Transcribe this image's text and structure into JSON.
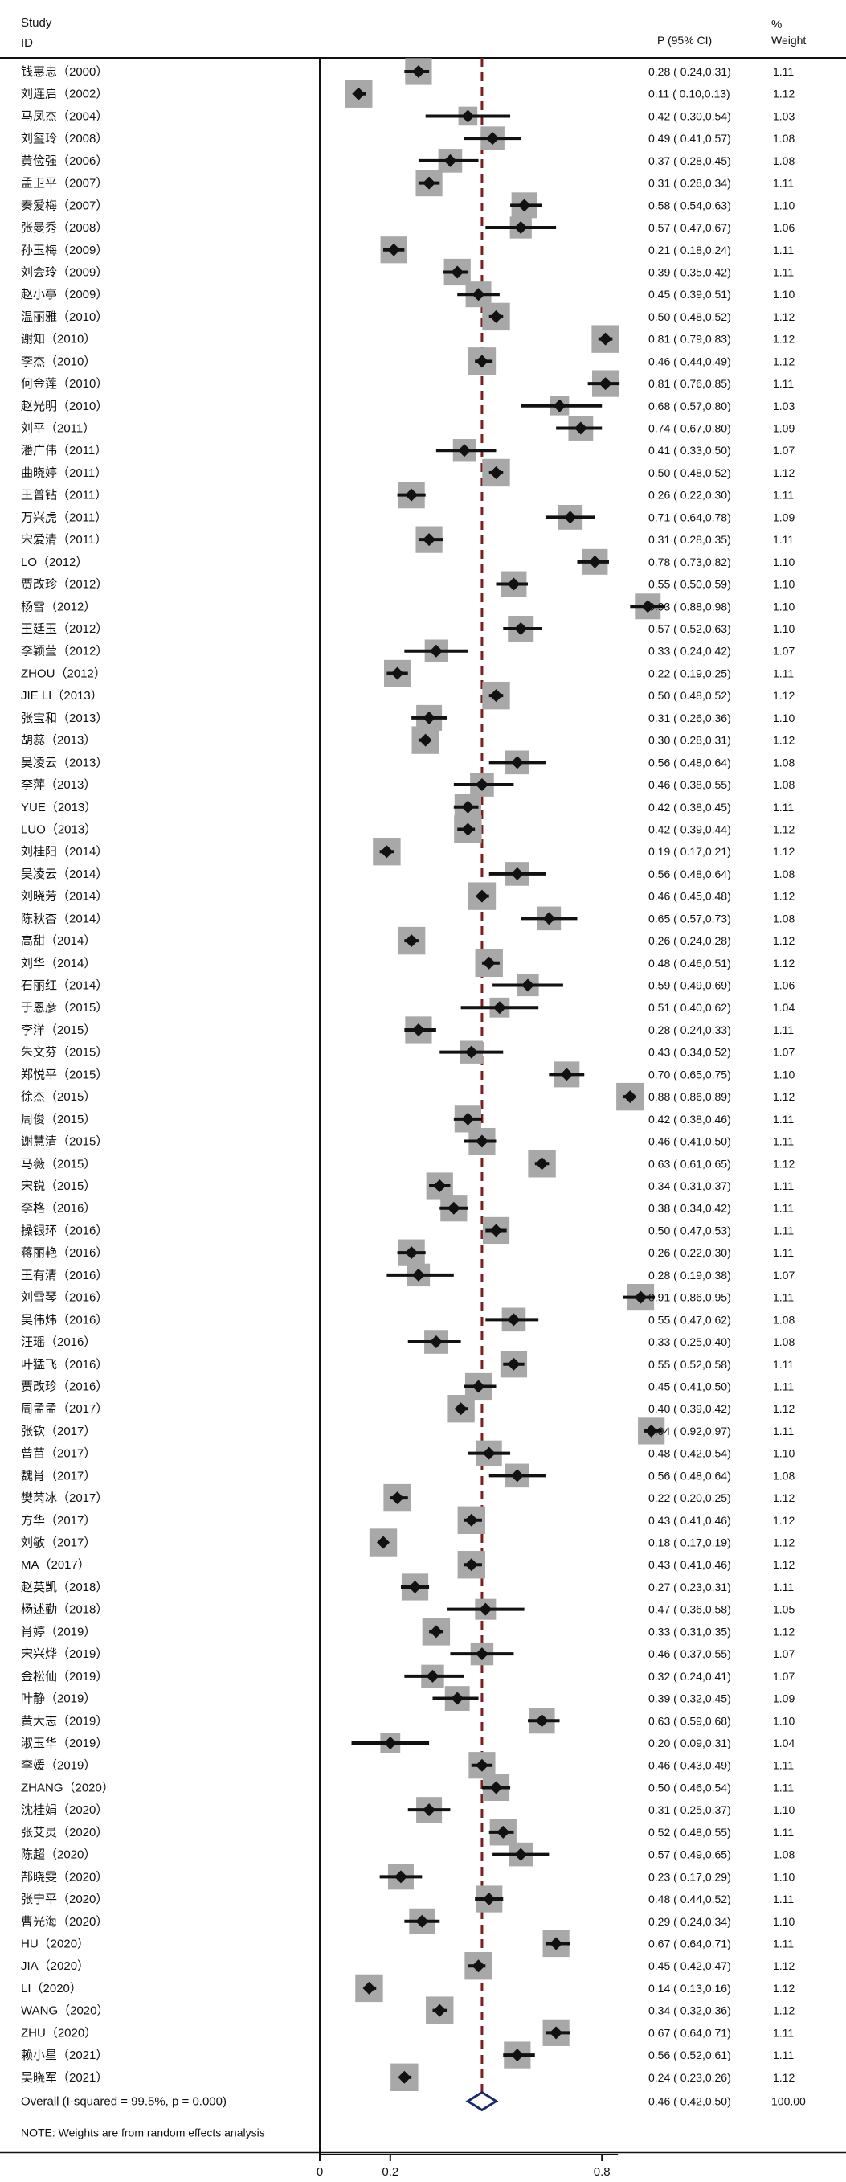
{
  "header": {
    "study": "Study",
    "id": "ID",
    "p_ci": "P (95% CI)",
    "pct": "%",
    "weight": "Weight"
  },
  "note": "NOTE: Weights are from random effects analysis",
  "colors": {
    "box": "#a8a8a8",
    "diamond": "#111111",
    "overall_diamond": "#1a2a6c",
    "ref_line": "#7a1f1f",
    "axis": "#111111"
  },
  "chart_data": {
    "type": "forest",
    "x_axis_ticks": [
      {
        "value": 0,
        "label": "0"
      },
      {
        "value": 0.2,
        "label": "0.2"
      },
      {
        "value": 0.8,
        "label": "0.8"
      }
    ],
    "xlim": [
      0,
      1
    ],
    "reference_line": 0.46,
    "overall": {
      "label": "Overall  (I-squared = 99.5%, p = 0.000)",
      "p": 0.46,
      "lo": 0.42,
      "hi": 0.5,
      "ci_text": "0.46 ( 0.42,0.50)",
      "weight": "100.00"
    },
    "studies": [
      {
        "name": "钱惠忠（2000）",
        "p": 0.28,
        "lo": 0.24,
        "hi": 0.31,
        "ci_text": "0.28 ( 0.24,0.31)",
        "weight": "1.11"
      },
      {
        "name": "刘连启（2002）",
        "p": 0.11,
        "lo": 0.1,
        "hi": 0.13,
        "ci_text": "0.11 ( 0.10,0.13)",
        "weight": "1.12"
      },
      {
        "name": "马凤杰（2004）",
        "p": 0.42,
        "lo": 0.3,
        "hi": 0.54,
        "ci_text": "0.42 ( 0.30,0.54)",
        "weight": "1.03"
      },
      {
        "name": "刘玺玲（2008）",
        "p": 0.49,
        "lo": 0.41,
        "hi": 0.57,
        "ci_text": "0.49 ( 0.41,0.57)",
        "weight": "1.08"
      },
      {
        "name": "黄俭强（2006）",
        "p": 0.37,
        "lo": 0.28,
        "hi": 0.45,
        "ci_text": "0.37 ( 0.28,0.45)",
        "weight": "1.08"
      },
      {
        "name": "孟卫平（2007）",
        "p": 0.31,
        "lo": 0.28,
        "hi": 0.34,
        "ci_text": "0.31 ( 0.28,0.34)",
        "weight": "1.11"
      },
      {
        "name": "秦爱梅（2007）",
        "p": 0.58,
        "lo": 0.54,
        "hi": 0.63,
        "ci_text": "0.58 ( 0.54,0.63)",
        "weight": "1.10"
      },
      {
        "name": "张曼秀（2008）",
        "p": 0.57,
        "lo": 0.47,
        "hi": 0.67,
        "ci_text": "0.57 ( 0.47,0.67)",
        "weight": "1.06"
      },
      {
        "name": "孙玉梅（2009）",
        "p": 0.21,
        "lo": 0.18,
        "hi": 0.24,
        "ci_text": "0.21 ( 0.18,0.24)",
        "weight": "1.11"
      },
      {
        "name": "刘会玲（2009）",
        "p": 0.39,
        "lo": 0.35,
        "hi": 0.42,
        "ci_text": "0.39 ( 0.35,0.42)",
        "weight": "1.11"
      },
      {
        "name": "赵小亭（2009）",
        "p": 0.45,
        "lo": 0.39,
        "hi": 0.51,
        "ci_text": "0.45 ( 0.39,0.51)",
        "weight": "1.10"
      },
      {
        "name": "温丽雅（2010）",
        "p": 0.5,
        "lo": 0.48,
        "hi": 0.52,
        "ci_text": "0.50 ( 0.48,0.52)",
        "weight": "1.12"
      },
      {
        "name": "谢知（2010）",
        "p": 0.81,
        "lo": 0.79,
        "hi": 0.83,
        "ci_text": "0.81 ( 0.79,0.83)",
        "weight": "1.12"
      },
      {
        "name": "李杰（2010）",
        "p": 0.46,
        "lo": 0.44,
        "hi": 0.49,
        "ci_text": "0.46 ( 0.44,0.49)",
        "weight": "1.12"
      },
      {
        "name": "何金莲（2010）",
        "p": 0.81,
        "lo": 0.76,
        "hi": 0.85,
        "ci_text": "0.81 ( 0.76,0.85)",
        "weight": "1.11"
      },
      {
        "name": "赵光明（2010）",
        "p": 0.68,
        "lo": 0.57,
        "hi": 0.8,
        "ci_text": "0.68 ( 0.57,0.80)",
        "weight": "1.03"
      },
      {
        "name": "刘平（2011）",
        "p": 0.74,
        "lo": 0.67,
        "hi": 0.8,
        "ci_text": "0.74 ( 0.67,0.80)",
        "weight": "1.09"
      },
      {
        "name": "潘广伟（2011）",
        "p": 0.41,
        "lo": 0.33,
        "hi": 0.5,
        "ci_text": "0.41 ( 0.33,0.50)",
        "weight": "1.07"
      },
      {
        "name": "曲晓婷（2011）",
        "p": 0.5,
        "lo": 0.48,
        "hi": 0.52,
        "ci_text": "0.50 ( 0.48,0.52)",
        "weight": "1.12"
      },
      {
        "name": "王普钻（2011）",
        "p": 0.26,
        "lo": 0.22,
        "hi": 0.3,
        "ci_text": "0.26 ( 0.22,0.30)",
        "weight": "1.11"
      },
      {
        "name": "万兴虎（2011）",
        "p": 0.71,
        "lo": 0.64,
        "hi": 0.78,
        "ci_text": "0.71 ( 0.64,0.78)",
        "weight": "1.09"
      },
      {
        "name": "宋爱清（2011）",
        "p": 0.31,
        "lo": 0.28,
        "hi": 0.35,
        "ci_text": "0.31 ( 0.28,0.35)",
        "weight": "1.11"
      },
      {
        "name": "LO（2012）",
        "p": 0.78,
        "lo": 0.73,
        "hi": 0.82,
        "ci_text": "0.78 ( 0.73,0.82)",
        "weight": "1.10"
      },
      {
        "name": "贾改珍（2012）",
        "p": 0.55,
        "lo": 0.5,
        "hi": 0.59,
        "ci_text": "0.55 ( 0.50,0.59)",
        "weight": "1.10"
      },
      {
        "name": "杨雪（2012）",
        "p": 0.93,
        "lo": 0.88,
        "hi": 0.98,
        "ci_text": "0.93 ( 0.88,0.98)",
        "weight": "1.10"
      },
      {
        "name": "王廷玉（2012）",
        "p": 0.57,
        "lo": 0.52,
        "hi": 0.63,
        "ci_text": "0.57 ( 0.52,0.63)",
        "weight": "1.10"
      },
      {
        "name": "李颖莹（2012）",
        "p": 0.33,
        "lo": 0.24,
        "hi": 0.42,
        "ci_text": "0.33 ( 0.24,0.42)",
        "weight": "1.07"
      },
      {
        "name": "ZHOU（2012）",
        "p": 0.22,
        "lo": 0.19,
        "hi": 0.25,
        "ci_text": "0.22 ( 0.19,0.25)",
        "weight": "1.11"
      },
      {
        "name": "JIE LI（2013）",
        "p": 0.5,
        "lo": 0.48,
        "hi": 0.52,
        "ci_text": "0.50 ( 0.48,0.52)",
        "weight": "1.12"
      },
      {
        "name": "张宝和（2013）",
        "p": 0.31,
        "lo": 0.26,
        "hi": 0.36,
        "ci_text": "0.31 ( 0.26,0.36)",
        "weight": "1.10"
      },
      {
        "name": "胡蕊（2013）",
        "p": 0.3,
        "lo": 0.28,
        "hi": 0.31,
        "ci_text": "0.30 ( 0.28,0.31)",
        "weight": "1.12"
      },
      {
        "name": "吴凌云（2013）",
        "p": 0.56,
        "lo": 0.48,
        "hi": 0.64,
        "ci_text": "0.56 ( 0.48,0.64)",
        "weight": "1.08"
      },
      {
        "name": "李萍（2013）",
        "p": 0.46,
        "lo": 0.38,
        "hi": 0.55,
        "ci_text": "0.46 ( 0.38,0.55)",
        "weight": "1.08"
      },
      {
        "name": "YUE（2013）",
        "p": 0.42,
        "lo": 0.38,
        "hi": 0.45,
        "ci_text": "0.42 ( 0.38,0.45)",
        "weight": "1.11"
      },
      {
        "name": "LUO（2013）",
        "p": 0.42,
        "lo": 0.39,
        "hi": 0.44,
        "ci_text": "0.42 ( 0.39,0.44)",
        "weight": "1.12"
      },
      {
        "name": "刘桂阳（2014）",
        "p": 0.19,
        "lo": 0.17,
        "hi": 0.21,
        "ci_text": "0.19 ( 0.17,0.21)",
        "weight": "1.12"
      },
      {
        "name": "吴凌云（2014）",
        "p": 0.56,
        "lo": 0.48,
        "hi": 0.64,
        "ci_text": "0.56 ( 0.48,0.64)",
        "weight": "1.08"
      },
      {
        "name": "刘晓芳（2014）",
        "p": 0.46,
        "lo": 0.45,
        "hi": 0.48,
        "ci_text": "0.46 ( 0.45,0.48)",
        "weight": "1.12"
      },
      {
        "name": "陈秋杏（2014）",
        "p": 0.65,
        "lo": 0.57,
        "hi": 0.73,
        "ci_text": "0.65 ( 0.57,0.73)",
        "weight": "1.08"
      },
      {
        "name": "高甜（2014）",
        "p": 0.26,
        "lo": 0.24,
        "hi": 0.28,
        "ci_text": "0.26 ( 0.24,0.28)",
        "weight": "1.12"
      },
      {
        "name": "刘华（2014）",
        "p": 0.48,
        "lo": 0.46,
        "hi": 0.51,
        "ci_text": "0.48 ( 0.46,0.51)",
        "weight": "1.12"
      },
      {
        "name": "石丽红（2014）",
        "p": 0.59,
        "lo": 0.49,
        "hi": 0.69,
        "ci_text": "0.59 ( 0.49,0.69)",
        "weight": "1.06"
      },
      {
        "name": "于恩彦（2015）",
        "p": 0.51,
        "lo": 0.4,
        "hi": 0.62,
        "ci_text": "0.51 ( 0.40,0.62)",
        "weight": "1.04"
      },
      {
        "name": "李洋（2015）",
        "p": 0.28,
        "lo": 0.24,
        "hi": 0.33,
        "ci_text": "0.28 ( 0.24,0.33)",
        "weight": "1.11"
      },
      {
        "name": "朱文芬（2015）",
        "p": 0.43,
        "lo": 0.34,
        "hi": 0.52,
        "ci_text": "0.43 ( 0.34,0.52)",
        "weight": "1.07"
      },
      {
        "name": "郑悦平（2015）",
        "p": 0.7,
        "lo": 0.65,
        "hi": 0.75,
        "ci_text": "0.70 ( 0.65,0.75)",
        "weight": "1.10"
      },
      {
        "name": "徐杰（2015）",
        "p": 0.88,
        "lo": 0.86,
        "hi": 0.89,
        "ci_text": "0.88 ( 0.86,0.89)",
        "weight": "1.12"
      },
      {
        "name": "周俊（2015）",
        "p": 0.42,
        "lo": 0.38,
        "hi": 0.46,
        "ci_text": "0.42 ( 0.38,0.46)",
        "weight": "1.11"
      },
      {
        "name": "谢慧清（2015）",
        "p": 0.46,
        "lo": 0.41,
        "hi": 0.5,
        "ci_text": "0.46 ( 0.41,0.50)",
        "weight": "1.11"
      },
      {
        "name": "马薇（2015）",
        "p": 0.63,
        "lo": 0.61,
        "hi": 0.65,
        "ci_text": "0.63 ( 0.61,0.65)",
        "weight": "1.12"
      },
      {
        "name": "宋锐（2015）",
        "p": 0.34,
        "lo": 0.31,
        "hi": 0.37,
        "ci_text": "0.34 ( 0.31,0.37)",
        "weight": "1.11"
      },
      {
        "name": "李格（2016）",
        "p": 0.38,
        "lo": 0.34,
        "hi": 0.42,
        "ci_text": "0.38 ( 0.34,0.42)",
        "weight": "1.11"
      },
      {
        "name": "操银环（2016）",
        "p": 0.5,
        "lo": 0.47,
        "hi": 0.53,
        "ci_text": "0.50 ( 0.47,0.53)",
        "weight": "1.11"
      },
      {
        "name": "蒋丽艳（2016）",
        "p": 0.26,
        "lo": 0.22,
        "hi": 0.3,
        "ci_text": "0.26 ( 0.22,0.30)",
        "weight": "1.11"
      },
      {
        "name": "王有清（2016）",
        "p": 0.28,
        "lo": 0.19,
        "hi": 0.38,
        "ci_text": "0.28 ( 0.19,0.38)",
        "weight": "1.07"
      },
      {
        "name": "刘雪琴（2016）",
        "p": 0.91,
        "lo": 0.86,
        "hi": 0.95,
        "ci_text": "0.91 ( 0.86,0.95)",
        "weight": "1.11"
      },
      {
        "name": "吴伟炜（2016）",
        "p": 0.55,
        "lo": 0.47,
        "hi": 0.62,
        "ci_text": "0.55 ( 0.47,0.62)",
        "weight": "1.08"
      },
      {
        "name": "汪瑶（2016）",
        "p": 0.33,
        "lo": 0.25,
        "hi": 0.4,
        "ci_text": "0.33 ( 0.25,0.40)",
        "weight": "1.08"
      },
      {
        "name": "叶猛飞（2016）",
        "p": 0.55,
        "lo": 0.52,
        "hi": 0.58,
        "ci_text": "0.55 ( 0.52,0.58)",
        "weight": "1.11"
      },
      {
        "name": "贾改珍（2016）",
        "p": 0.45,
        "lo": 0.41,
        "hi": 0.5,
        "ci_text": "0.45 ( 0.41,0.50)",
        "weight": "1.11"
      },
      {
        "name": "周孟孟（2017）",
        "p": 0.4,
        "lo": 0.39,
        "hi": 0.42,
        "ci_text": "0.40 ( 0.39,0.42)",
        "weight": "1.12"
      },
      {
        "name": "张钦（2017）",
        "p": 0.94,
        "lo": 0.92,
        "hi": 0.97,
        "ci_text": "0.94 ( 0.92,0.97)",
        "weight": "1.11"
      },
      {
        "name": "曾苗（2017）",
        "p": 0.48,
        "lo": 0.42,
        "hi": 0.54,
        "ci_text": "0.48 ( 0.42,0.54)",
        "weight": "1.10"
      },
      {
        "name": "魏肖（2017）",
        "p": 0.56,
        "lo": 0.48,
        "hi": 0.64,
        "ci_text": "0.56 ( 0.48,0.64)",
        "weight": "1.08"
      },
      {
        "name": "樊芮冰（2017）",
        "p": 0.22,
        "lo": 0.2,
        "hi": 0.25,
        "ci_text": "0.22 ( 0.20,0.25)",
        "weight": "1.12"
      },
      {
        "name": "方华（2017）",
        "p": 0.43,
        "lo": 0.41,
        "hi": 0.46,
        "ci_text": "0.43 ( 0.41,0.46)",
        "weight": "1.12"
      },
      {
        "name": "刘敏（2017）",
        "p": 0.18,
        "lo": 0.17,
        "hi": 0.19,
        "ci_text": "0.18 ( 0.17,0.19)",
        "weight": "1.12"
      },
      {
        "name": "MA（2017）",
        "p": 0.43,
        "lo": 0.41,
        "hi": 0.46,
        "ci_text": "0.43 ( 0.41,0.46)",
        "weight": "1.12"
      },
      {
        "name": "赵英凯（2018）",
        "p": 0.27,
        "lo": 0.23,
        "hi": 0.31,
        "ci_text": "0.27 ( 0.23,0.31)",
        "weight": "1.11"
      },
      {
        "name": "杨述勤（2018）",
        "p": 0.47,
        "lo": 0.36,
        "hi": 0.58,
        "ci_text": "0.47 ( 0.36,0.58)",
        "weight": "1.05"
      },
      {
        "name": "肖婷（2019）",
        "p": 0.33,
        "lo": 0.31,
        "hi": 0.35,
        "ci_text": "0.33 ( 0.31,0.35)",
        "weight": "1.12"
      },
      {
        "name": "宋兴烨（2019）",
        "p": 0.46,
        "lo": 0.37,
        "hi": 0.55,
        "ci_text": "0.46 ( 0.37,0.55)",
        "weight": "1.07"
      },
      {
        "name": "金松仙（2019）",
        "p": 0.32,
        "lo": 0.24,
        "hi": 0.41,
        "ci_text": "0.32 ( 0.24,0.41)",
        "weight": "1.07"
      },
      {
        "name": "叶静（2019）",
        "p": 0.39,
        "lo": 0.32,
        "hi": 0.45,
        "ci_text": "0.39 ( 0.32,0.45)",
        "weight": "1.09"
      },
      {
        "name": "黄大志（2019）",
        "p": 0.63,
        "lo": 0.59,
        "hi": 0.68,
        "ci_text": "0.63 ( 0.59,0.68)",
        "weight": "1.10"
      },
      {
        "name": "淑玉华（2019）",
        "p": 0.2,
        "lo": 0.09,
        "hi": 0.31,
        "ci_text": "0.20 ( 0.09,0.31)",
        "weight": "1.04"
      },
      {
        "name": "李媛（2019）",
        "p": 0.46,
        "lo": 0.43,
        "hi": 0.49,
        "ci_text": "0.46 ( 0.43,0.49)",
        "weight": "1.11"
      },
      {
        "name": "ZHANG（2020）",
        "p": 0.5,
        "lo": 0.46,
        "hi": 0.54,
        "ci_text": "0.50 ( 0.46,0.54)",
        "weight": "1.11"
      },
      {
        "name": "沈桂娟（2020）",
        "p": 0.31,
        "lo": 0.25,
        "hi": 0.37,
        "ci_text": "0.31 ( 0.25,0.37)",
        "weight": "1.10"
      },
      {
        "name": "张艾灵（2020）",
        "p": 0.52,
        "lo": 0.48,
        "hi": 0.55,
        "ci_text": "0.52 ( 0.48,0.55)",
        "weight": "1.11"
      },
      {
        "name": "陈超（2020）",
        "p": 0.57,
        "lo": 0.49,
        "hi": 0.65,
        "ci_text": "0.57 ( 0.49,0.65)",
        "weight": "1.08"
      },
      {
        "name": "郜晓雯（2020）",
        "p": 0.23,
        "lo": 0.17,
        "hi": 0.29,
        "ci_text": "0.23 ( 0.17,0.29)",
        "weight": "1.10"
      },
      {
        "name": "张宁平（2020）",
        "p": 0.48,
        "lo": 0.44,
        "hi": 0.52,
        "ci_text": "0.48 ( 0.44,0.52)",
        "weight": "1.11"
      },
      {
        "name": "曹光海（2020）",
        "p": 0.29,
        "lo": 0.24,
        "hi": 0.34,
        "ci_text": "0.29 ( 0.24,0.34)",
        "weight": "1.10"
      },
      {
        "name": "HU（2020）",
        "p": 0.67,
        "lo": 0.64,
        "hi": 0.71,
        "ci_text": "0.67 ( 0.64,0.71)",
        "weight": "1.11"
      },
      {
        "name": "JIA（2020）",
        "p": 0.45,
        "lo": 0.42,
        "hi": 0.47,
        "ci_text": "0.45 ( 0.42,0.47)",
        "weight": "1.12"
      },
      {
        "name": "LI（2020）",
        "p": 0.14,
        "lo": 0.13,
        "hi": 0.16,
        "ci_text": "0.14 ( 0.13,0.16)",
        "weight": "1.12"
      },
      {
        "name": "WANG（2020）",
        "p": 0.34,
        "lo": 0.32,
        "hi": 0.36,
        "ci_text": "0.34 ( 0.32,0.36)",
        "weight": "1.12"
      },
      {
        "name": "ZHU（2020）",
        "p": 0.67,
        "lo": 0.64,
        "hi": 0.71,
        "ci_text": "0.67 ( 0.64,0.71)",
        "weight": "1.11"
      },
      {
        "name": "赖小星（2021）",
        "p": 0.56,
        "lo": 0.52,
        "hi": 0.61,
        "ci_text": "0.56 ( 0.52,0.61)",
        "weight": "1.11"
      },
      {
        "name": "吴晓军（2021）",
        "p": 0.24,
        "lo": 0.23,
        "hi": 0.26,
        "ci_text": "0.24 ( 0.23,0.26)",
        "weight": "1.12"
      }
    ]
  }
}
